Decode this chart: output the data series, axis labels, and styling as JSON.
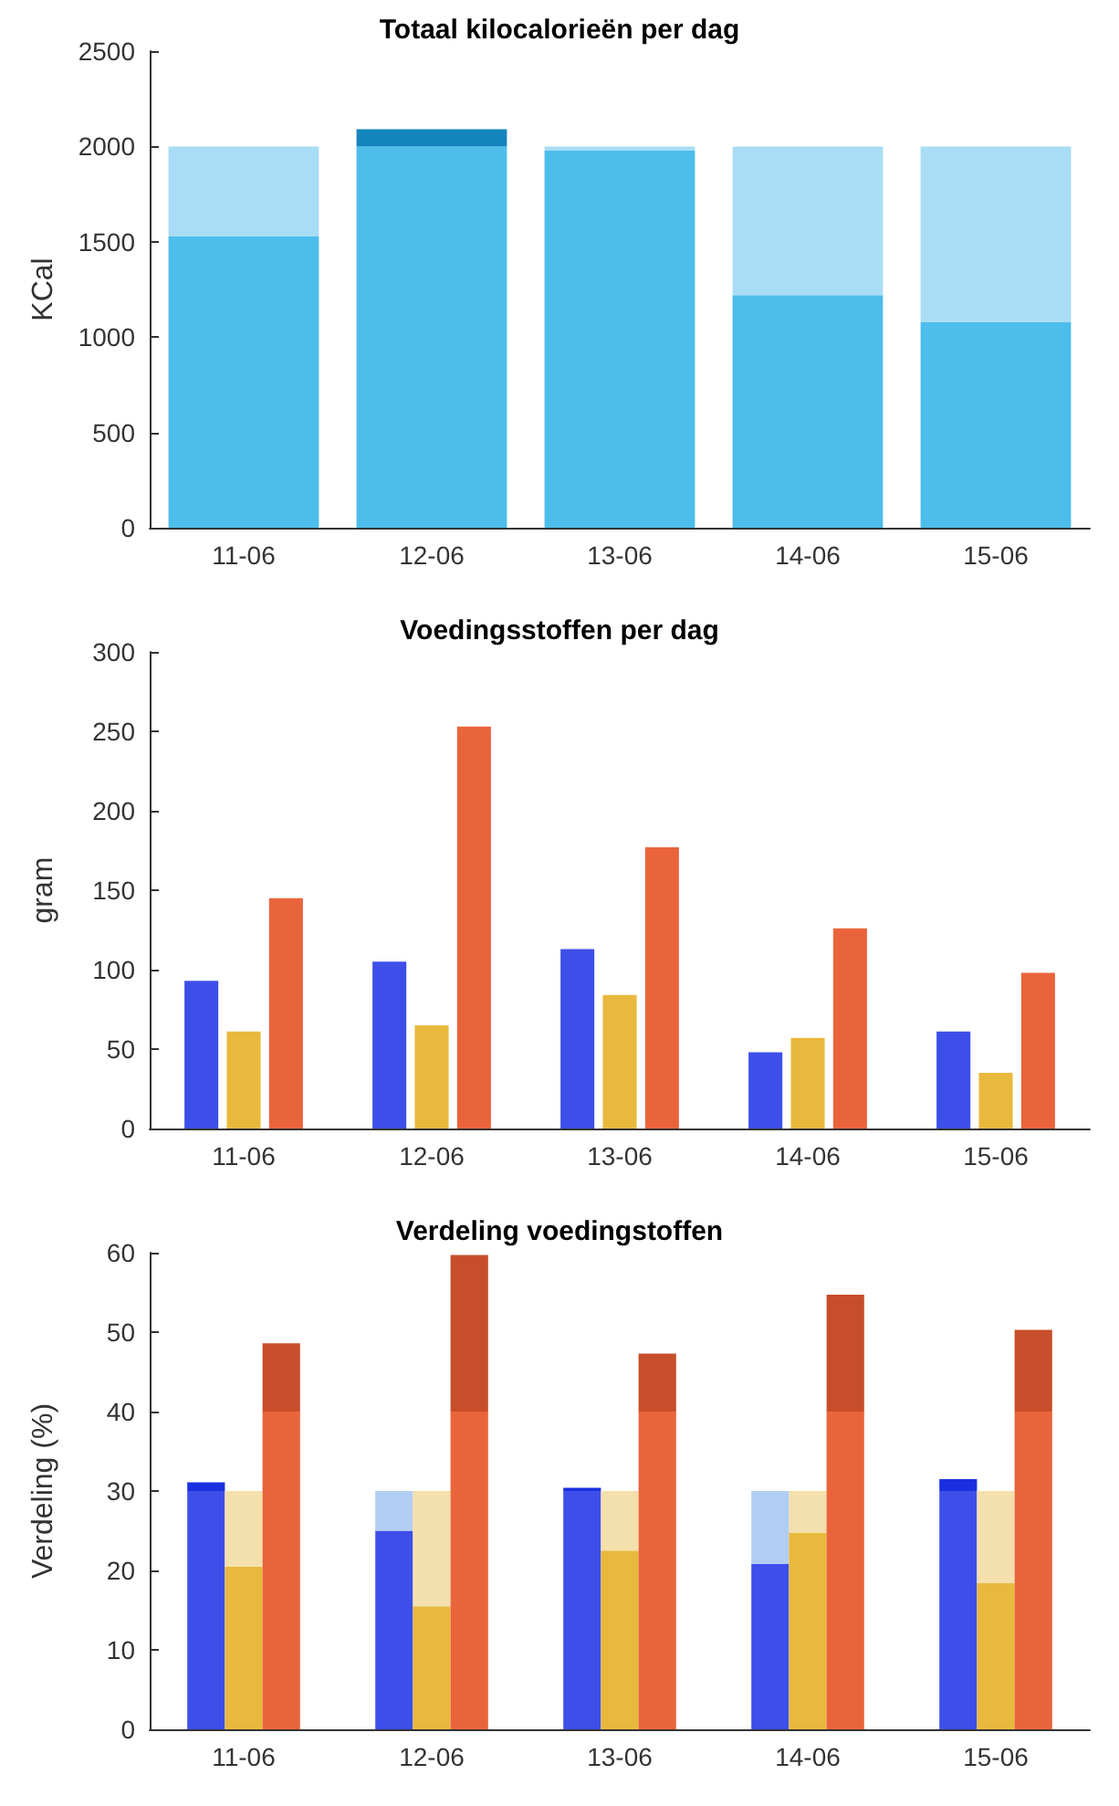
{
  "chart_data": [
    {
      "type": "bar",
      "title": "Totaal kilocalorieën per dag",
      "ylabel": "KCal",
      "categories": [
        "11-06",
        "12-06",
        "13-06",
        "14-06",
        "15-06"
      ],
      "stacked": true,
      "ylim": [
        0,
        2500
      ],
      "yticks": [
        0,
        500,
        1000,
        1500,
        2000,
        2500
      ],
      "series": [
        {
          "color": "#4dbdeb",
          "values": [
            1530,
            2000,
            1980,
            1220,
            1080
          ]
        },
        {
          "color": "#a9ddf5",
          "values": [
            470,
            null,
            20,
            780,
            920
          ]
        },
        {
          "color": "#1485bd",
          "values": [
            null,
            90,
            null,
            null,
            null
          ]
        }
      ]
    },
    {
      "type": "bar",
      "title": "Voedingsstoffen per dag",
      "ylabel": "gram",
      "categories": [
        "11-06",
        "12-06",
        "13-06",
        "14-06",
        "15-06"
      ],
      "ylim": [
        0,
        300
      ],
      "yticks": [
        0,
        50,
        100,
        150,
        200,
        250,
        300
      ],
      "series": [
        {
          "color": "#3d4fe8",
          "values": [
            93,
            105,
            113,
            48,
            61
          ]
        },
        {
          "color": "#e9b93d",
          "values": [
            61,
            65,
            84,
            57,
            35
          ]
        },
        {
          "color": "#ea643b",
          "values": [
            145,
            253,
            177,
            126,
            98
          ]
        }
      ]
    },
    {
      "type": "bar",
      "title": "Verdeling voedingstoffen",
      "ylabel": "Verdeling (%)",
      "categories": [
        "11-06",
        "12-06",
        "13-06",
        "14-06",
        "15-06"
      ],
      "ylim": [
        0,
        60
      ],
      "yticks": [
        0,
        10,
        20,
        30,
        40,
        50,
        60
      ],
      "series": [
        {
          "color": "#3d4fe8",
          "values": [
            30,
            25,
            30,
            20.8,
            30
          ],
          "base": [
            0,
            0,
            0,
            0,
            0
          ]
        },
        {
          "color": "#1a30e0",
          "values": [
            1.1,
            null,
            0.4,
            null,
            1.5
          ],
          "base": [
            30,
            null,
            30,
            null,
            30
          ]
        },
        {
          "color": "#b1cdf3",
          "values": [
            null,
            5,
            null,
            9.2,
            null
          ],
          "base": [
            null,
            25,
            null,
            20.8,
            null
          ]
        },
        {
          "color": "#e9b93d",
          "values": [
            20.5,
            15.5,
            22.5,
            24.7,
            18.4
          ],
          "base": [
            0,
            0,
            0,
            0,
            0
          ]
        },
        {
          "color": "#f4e0ac",
          "values": [
            9.5,
            14.5,
            7.5,
            5.3,
            11.6
          ],
          "base": [
            20.5,
            15.5,
            22.5,
            24.7,
            18.4
          ]
        },
        {
          "color": "#ea643b",
          "values": [
            40,
            40,
            40,
            40,
            40
          ],
          "base": [
            0,
            0,
            0,
            0,
            0
          ]
        },
        {
          "color": "#c74e2a",
          "values": [
            8.6,
            19.7,
            7.3,
            14.7,
            10.3
          ],
          "base": [
            40,
            40,
            40,
            40,
            40
          ]
        }
      ]
    }
  ]
}
